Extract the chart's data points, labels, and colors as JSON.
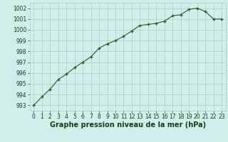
{
  "x": [
    0,
    1,
    2,
    3,
    4,
    5,
    6,
    7,
    8,
    9,
    10,
    11,
    12,
    13,
    14,
    15,
    16,
    17,
    18,
    19,
    20,
    21,
    22,
    23
  ],
  "y": [
    993.0,
    993.8,
    994.5,
    995.4,
    995.9,
    996.5,
    997.0,
    997.5,
    998.3,
    998.7,
    999.0,
    999.4,
    999.9,
    1000.4,
    1000.5,
    1000.6,
    1000.8,
    1001.3,
    1001.4,
    1001.9,
    1002.0,
    1001.7,
    1001.0,
    1001.0
  ],
  "line_color": "#2d5a27",
  "marker": "+",
  "bg_color": "#cff0ea",
  "grid_color": "#aacfc8",
  "title": "Graphe pression niveau de la mer (hPa)",
  "ylim_min": 992.5,
  "ylim_max": 1002.5,
  "yticks": [
    993,
    994,
    995,
    996,
    997,
    998,
    999,
    1000,
    1001,
    1002
  ],
  "xticks": [
    0,
    1,
    2,
    3,
    4,
    5,
    6,
    7,
    8,
    9,
    10,
    11,
    12,
    13,
    14,
    15,
    16,
    17,
    18,
    19,
    20,
    21,
    22,
    23
  ],
  "title_fontsize": 7.0,
  "tick_fontsize": 5.5,
  "title_color": "#1a3d18",
  "tick_color": "#1a3d18",
  "linewidth": 0.8,
  "markersize": 3.5,
  "markeredgewidth": 1.0
}
